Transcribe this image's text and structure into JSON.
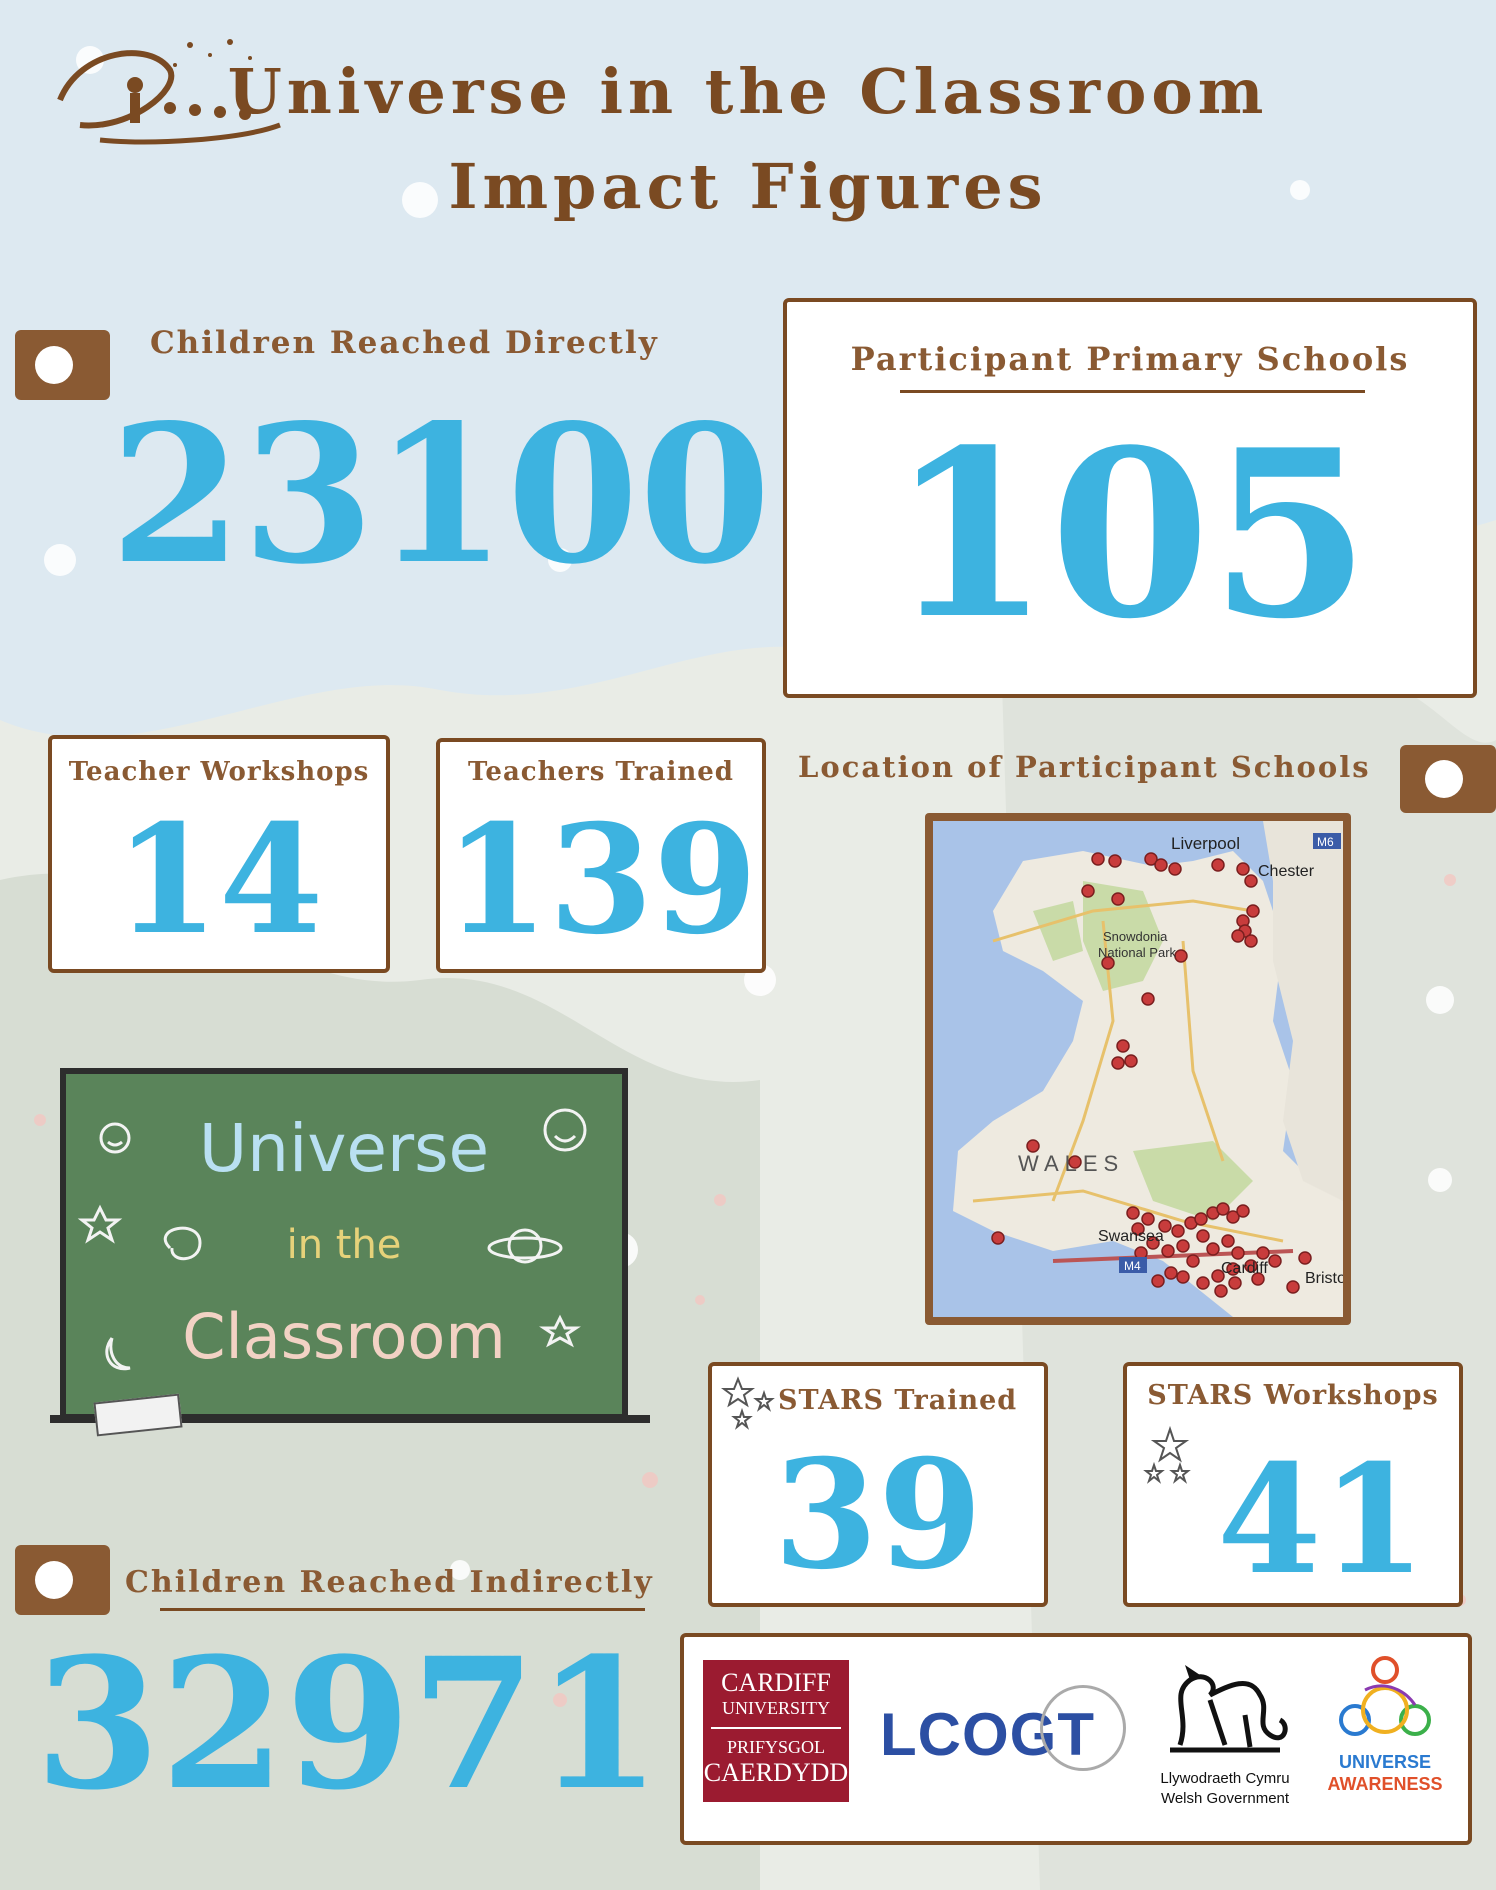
{
  "header": {
    "title_line1": "Universe in the Classroom",
    "title_line2": "Impact Figures"
  },
  "stats": {
    "children_direct": {
      "label": "Children Reached Directly",
      "value": "23100"
    },
    "primary_schools": {
      "label": "Participant Primary Schools",
      "value": "105"
    },
    "teacher_workshops": {
      "label": "Teacher Workshops",
      "value": "14"
    },
    "teachers_trained": {
      "label": "Teachers Trained",
      "value": "139"
    },
    "stars_trained": {
      "label": "STARS Trained",
      "value": "39"
    },
    "stars_workshops": {
      "label": "STARS Workshops",
      "value": "41"
    },
    "children_indirect": {
      "label": "Children Reached Indirectly",
      "value": "32971"
    }
  },
  "map": {
    "title": "Location of Participant Schools",
    "labels": {
      "liverpool": "Liverpool",
      "m6": "M6",
      "chester": "Chester",
      "snowdonia_1": "Snowdonia",
      "snowdonia_2": "National Park",
      "wales": "WALES",
      "swansea": "Swansea",
      "m4": "M4",
      "cardiff": "Cardiff",
      "bristol": "Bristol"
    }
  },
  "chalkboard": {
    "line1": "Universe",
    "line2": "in the",
    "line3": "Classroom"
  },
  "logos": {
    "cardiff_1": "CARDIFF",
    "cardiff_2": "UNIVERSITY",
    "cardiff_3": "PRIFYSGOL",
    "cardiff_4": "CAERDYDD",
    "lcogt": "LCOGT",
    "welsh_gov_1": "Llywodraeth Cymru",
    "welsh_gov_2": "Welsh Government",
    "universe_awareness_1": "UNIVERSE",
    "universe_awareness_2": "AWARENESS"
  },
  "colors": {
    "brown": "#7a4a22",
    "blue": "#3db3e0",
    "chalkboard": "#5a845a",
    "cardiff_red": "#9b1b30"
  }
}
